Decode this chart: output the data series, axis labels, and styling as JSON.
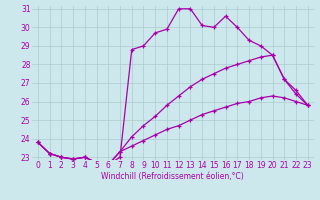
{
  "xlabel": "Windchill (Refroidissement éolien,°C)",
  "bg_color": "#cce8ec",
  "line_color": "#aa00aa",
  "grid_color": "#aacccc",
  "x_min": 0,
  "x_max": 23,
  "y_min": 23,
  "y_max": 31,
  "series": [
    [
      23.8,
      23.2,
      23.0,
      22.9,
      23.0,
      22.7,
      22.6,
      23.0,
      28.8,
      29.0,
      29.7,
      29.9,
      31.0,
      31.0,
      30.1,
      30.0,
      30.6,
      30.0,
      29.3,
      29.0,
      28.5,
      27.2,
      26.4,
      25.8
    ],
    [
      23.8,
      23.2,
      23.0,
      22.9,
      23.0,
      22.7,
      22.6,
      23.3,
      24.1,
      24.7,
      25.2,
      25.8,
      26.3,
      26.8,
      27.2,
      27.5,
      27.8,
      28.0,
      28.2,
      28.4,
      28.5,
      27.2,
      26.6,
      25.8
    ],
    [
      23.8,
      23.2,
      23.0,
      22.9,
      23.0,
      22.7,
      22.6,
      23.3,
      23.6,
      23.9,
      24.2,
      24.5,
      24.7,
      25.0,
      25.3,
      25.5,
      25.7,
      25.9,
      26.0,
      26.2,
      26.3,
      26.2,
      26.0,
      25.8
    ]
  ],
  "xlabel_fontsize": 5.5,
  "tick_fontsize": 5.5
}
